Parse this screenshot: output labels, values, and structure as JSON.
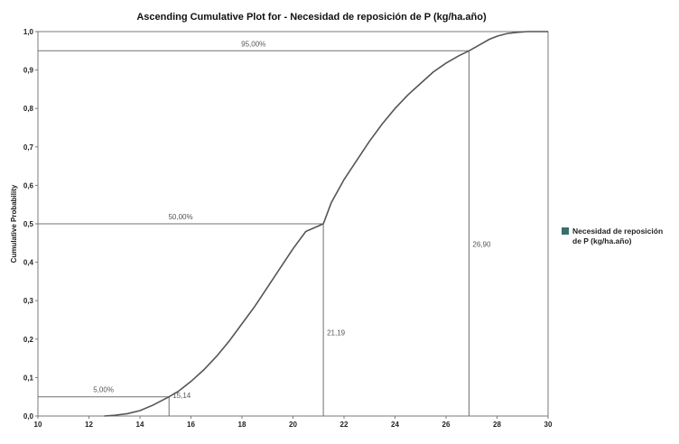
{
  "chart_data": {
    "type": "line",
    "title": "Ascending Cumulative Plot for  - Necesidad de reposición de P (kg/ha.año)",
    "ylabel": "Cumulative Probability",
    "xlabel": "",
    "xlim": [
      10,
      30
    ],
    "ylim": [
      0,
      1
    ],
    "x_ticks": [
      "10",
      "12",
      "14",
      "16",
      "18",
      "20",
      "22",
      "24",
      "26",
      "28",
      "30"
    ],
    "x_tick_values": [
      10,
      12,
      14,
      16,
      18,
      20,
      22,
      24,
      26,
      28,
      30
    ],
    "y_ticks": [
      "0,0",
      "0,1",
      "0,2",
      "0,3",
      "0,4",
      "0,5",
      "0,6",
      "0,7",
      "0,8",
      "0,9",
      "1,0"
    ],
    "y_tick_values": [
      0,
      0.1,
      0.2,
      0.3,
      0.4,
      0.5,
      0.6,
      0.7,
      0.8,
      0.9,
      1.0
    ],
    "grid": false,
    "legend_position": "right",
    "series": [
      {
        "name": "Necesidad de reposición de P (kg/ha.año)",
        "color": "#3a6f6a",
        "x": [
          12.6,
          13.0,
          13.5,
          14.0,
          14.5,
          15.14,
          15.5,
          16.0,
          16.5,
          17.0,
          17.5,
          18.0,
          18.5,
          19.0,
          19.5,
          20.0,
          20.5,
          21.19,
          21.5,
          22.0,
          22.5,
          23.0,
          23.5,
          24.0,
          24.5,
          25.0,
          25.5,
          26.0,
          26.5,
          26.9,
          27.3,
          27.7,
          28.0,
          28.4,
          28.8,
          29.2,
          30.0
        ],
        "y": [
          0.0,
          0.002,
          0.006,
          0.014,
          0.028,
          0.05,
          0.064,
          0.09,
          0.12,
          0.155,
          0.195,
          0.24,
          0.285,
          0.335,
          0.385,
          0.435,
          0.48,
          0.5,
          0.555,
          0.615,
          0.665,
          0.715,
          0.76,
          0.8,
          0.835,
          0.865,
          0.895,
          0.918,
          0.937,
          0.95,
          0.965,
          0.98,
          0.988,
          0.995,
          0.998,
          1.0,
          1.0
        ]
      }
    ],
    "reference_lines": [
      {
        "label": "5,00%",
        "value_label": "15,14",
        "p": 0.05,
        "x": 15.14
      },
      {
        "label": "50,00%",
        "value_label": "21,19",
        "p": 0.5,
        "x": 21.19
      },
      {
        "label": "95,00%",
        "value_label": "26,90",
        "p": 0.95,
        "x": 26.9
      }
    ]
  }
}
